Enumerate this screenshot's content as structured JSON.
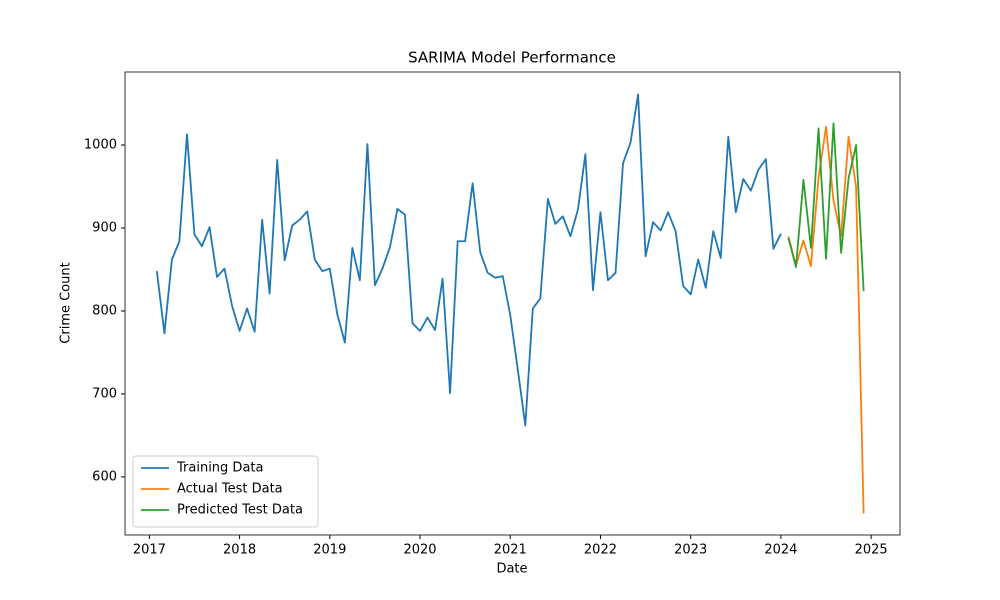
{
  "chart_data": {
    "type": "line",
    "title": "SARIMA Model Performance",
    "x_label": "Date",
    "y_label": "Crime Count",
    "legend": "lower left",
    "grid": false,
    "xlim": [
      2016.73,
      2025.32
    ],
    "xticks": [
      2017,
      2018,
      2019,
      2020,
      2021,
      2022,
      2023,
      2024,
      2025
    ],
    "ylim": [
      530,
      1088
    ],
    "yticks": [
      600,
      700,
      800,
      900,
      1000
    ],
    "series": [
      {
        "name": "Training Data",
        "color": "#1f77b4",
        "x": [
          2017.083,
          2017.167,
          2017.25,
          2017.333,
          2017.417,
          2017.5,
          2017.583,
          2017.667,
          2017.75,
          2017.833,
          2017.917,
          2018.0,
          2018.083,
          2018.167,
          2018.25,
          2018.333,
          2018.417,
          2018.5,
          2018.583,
          2018.667,
          2018.75,
          2018.833,
          2018.917,
          2019.0,
          2019.083,
          2019.167,
          2019.25,
          2019.333,
          2019.417,
          2019.5,
          2019.583,
          2019.667,
          2019.75,
          2019.833,
          2019.917,
          2020.0,
          2020.083,
          2020.167,
          2020.25,
          2020.333,
          2020.417,
          2020.5,
          2020.583,
          2020.667,
          2020.75,
          2020.833,
          2020.917,
          2021.0,
          2021.083,
          2021.167,
          2021.25,
          2021.333,
          2021.417,
          2021.5,
          2021.583,
          2021.667,
          2021.75,
          2021.833,
          2021.917,
          2022.0,
          2022.083,
          2022.167,
          2022.25,
          2022.333,
          2022.417,
          2022.5,
          2022.583,
          2022.667,
          2022.75,
          2022.833,
          2022.917,
          2023.0,
          2023.083,
          2023.167,
          2023.25,
          2023.333,
          2023.417,
          2023.5,
          2023.583,
          2023.667,
          2023.75,
          2023.833,
          2023.917,
          2024.0
        ],
        "values": [
          848,
          773,
          862,
          884,
          1013,
          892,
          878,
          901,
          841,
          851,
          806,
          776,
          803,
          775,
          910,
          821,
          982,
          861,
          903,
          910,
          920,
          862,
          848,
          851,
          796,
          762,
          876,
          837,
          1001,
          831,
          851,
          877,
          923,
          916,
          785,
          776,
          792,
          777,
          839,
          701,
          884,
          884,
          954,
          871,
          846,
          840,
          842,
          795,
          730,
          662,
          803,
          815,
          935,
          905,
          914,
          890,
          922,
          989,
          825,
          919,
          837,
          846,
          978,
          1003,
          1061,
          866,
          907,
          897,
          919,
          896,
          830,
          820,
          862,
          828,
          896,
          864,
          1010,
          919,
          959,
          945,
          970,
          983,
          875,
          893
        ]
      },
      {
        "name": "Actual Test Data",
        "color": "#ff7f0e",
        "x": [
          2024.083,
          2024.167,
          2024.25,
          2024.333,
          2024.417,
          2024.5,
          2024.583,
          2024.667,
          2024.75,
          2024.833,
          2024.917
        ],
        "values": [
          890,
          855,
          885,
          854,
          960,
          1022,
          933,
          890,
          1010,
          950,
          556
        ]
      },
      {
        "name": "Predicted Test Data",
        "color": "#2ca02c",
        "x": [
          2024.083,
          2024.167,
          2024.25,
          2024.333,
          2024.417,
          2024.5,
          2024.583,
          2024.667,
          2024.75,
          2024.833,
          2024.917
        ],
        "values": [
          888,
          853,
          958,
          876,
          1020,
          863,
          1026,
          870,
          960,
          1000,
          824
        ]
      }
    ]
  }
}
